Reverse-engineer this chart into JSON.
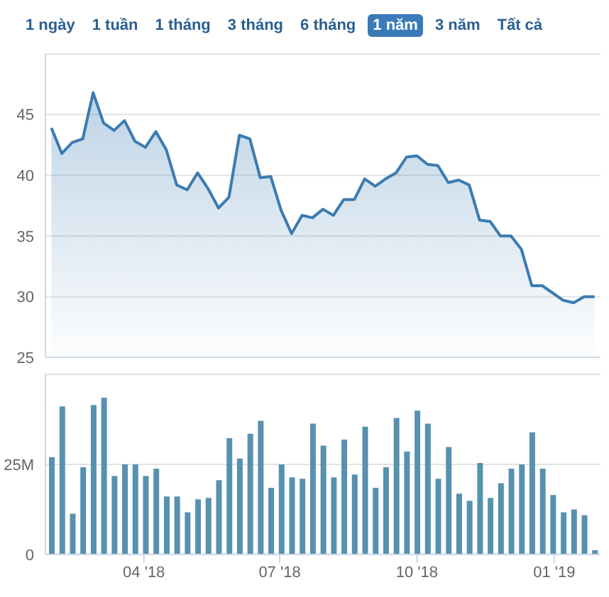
{
  "chart_data": [
    {
      "type": "area",
      "annotations": [
        "1 ngày",
        "1 tuần",
        "1 tháng",
        "3 tháng",
        "6 tháng",
        "1 năm",
        "3 năm",
        "Tất cả"
      ],
      "x": [
        "2018-01-29",
        "2018-02-05",
        "2018-02-12",
        "2018-02-19",
        "2018-02-26",
        "2018-03-05",
        "2018-03-12",
        "2018-03-19",
        "2018-03-26",
        "2018-04-02",
        "2018-04-09",
        "2018-04-16",
        "2018-04-23",
        "2018-04-30",
        "2018-05-07",
        "2018-05-14",
        "2018-05-21",
        "2018-05-28",
        "2018-06-04",
        "2018-06-11",
        "2018-06-18",
        "2018-06-25",
        "2018-07-02",
        "2018-07-09",
        "2018-07-16",
        "2018-07-23",
        "2018-07-30",
        "2018-08-06",
        "2018-08-13",
        "2018-08-20",
        "2018-08-27",
        "2018-09-03",
        "2018-09-10",
        "2018-09-17",
        "2018-09-24",
        "2018-10-01",
        "2018-10-08",
        "2018-10-15",
        "2018-10-22",
        "2018-10-29",
        "2018-11-05",
        "2018-11-12",
        "2018-11-19",
        "2018-11-26",
        "2018-12-03",
        "2018-12-10",
        "2018-12-17",
        "2018-12-24",
        "2018-12-31",
        "2019-01-07",
        "2019-01-14",
        "2019-01-21",
        "2019-01-28"
      ],
      "series": [
        {
          "color": "#3b7bb0",
          "values": [
            43.9,
            41.8,
            42.7,
            43.0,
            46.8,
            44.3,
            43.7,
            44.5,
            42.8,
            42.3,
            43.6,
            42.1,
            39.2,
            38.8,
            40.2,
            38.9,
            37.3,
            38.2,
            43.3,
            43.0,
            39.8,
            39.9,
            37.1,
            35.2,
            36.7,
            36.5,
            37.2,
            36.7,
            38.0,
            38.0,
            39.7,
            39.1,
            39.7,
            40.2,
            41.5,
            41.6,
            40.9,
            40.8,
            39.4,
            39.6,
            39.2,
            36.3,
            36.2,
            35.0,
            35.0,
            33.9,
            30.9,
            30.9,
            30.3,
            29.7,
            29.5,
            30.0,
            30.0
          ]
        }
      ],
      "xlim": [
        "2018-01-25",
        "2019-02-01"
      ],
      "ylim": [
        25,
        50
      ],
      "yticks": [
        25,
        30,
        35,
        40,
        45
      ],
      "tick_labels": "y",
      "grid": "y",
      "marker": "none"
    },
    {
      "type": "bar",
      "x": [
        "2018-01-29",
        "2018-02-05",
        "2018-02-12",
        "2018-02-19",
        "2018-02-26",
        "2018-03-05",
        "2018-03-12",
        "2018-03-19",
        "2018-03-26",
        "2018-04-02",
        "2018-04-09",
        "2018-04-16",
        "2018-04-23",
        "2018-04-30",
        "2018-05-07",
        "2018-05-14",
        "2018-05-21",
        "2018-05-28",
        "2018-06-04",
        "2018-06-11",
        "2018-06-18",
        "2018-06-25",
        "2018-07-02",
        "2018-07-09",
        "2018-07-16",
        "2018-07-23",
        "2018-07-30",
        "2018-08-06",
        "2018-08-13",
        "2018-08-20",
        "2018-08-27",
        "2018-09-03",
        "2018-09-10",
        "2018-09-17",
        "2018-09-24",
        "2018-10-01",
        "2018-10-08",
        "2018-10-15",
        "2018-10-22",
        "2018-10-29",
        "2018-11-05",
        "2018-11-12",
        "2018-11-19",
        "2018-11-26",
        "2018-12-03",
        "2018-12-10",
        "2018-12-17",
        "2018-12-24",
        "2018-12-31",
        "2019-01-07",
        "2019-01-14",
        "2019-01-21",
        "2019-01-28"
      ],
      "series": [
        {
          "color": "#5791b0",
          "values": [
            27.0,
            41.1,
            11.3,
            24.2,
            41.5,
            43.5,
            21.8,
            25.0,
            25.0,
            21.8,
            23.8,
            16.1,
            16.1,
            11.7,
            15.3,
            15.7,
            20.6,
            32.3,
            26.6,
            33.5,
            37.1,
            18.5,
            25.0,
            21.4,
            21.0,
            36.3,
            30.2,
            21.4,
            31.9,
            22.2,
            35.5,
            18.5,
            24.2,
            37.9,
            28.6,
            39.9,
            36.3,
            21.0,
            29.8,
            16.9,
            14.9,
            25.4,
            15.7,
            19.8,
            23.8,
            25.0,
            33.9,
            23.8,
            16.5,
            11.7,
            12.5,
            10.9,
            1.2
          ]
        }
      ],
      "xlim": [
        "2018-01-25",
        "2019-02-01"
      ],
      "xticks": [
        {
          "value": "2018-04-01",
          "label": "04 '18"
        },
        {
          "value": "2018-07-01",
          "label": "07 '18"
        },
        {
          "value": "2018-10-01",
          "label": "10 '18"
        },
        {
          "value": "2019-01-01",
          "label": "01 '19"
        }
      ],
      "ylim": [
        0,
        50
      ],
      "yticks": [
        0,
        {
          "value": 25,
          "label": "25M"
        }
      ],
      "grid": "y"
    }
  ]
}
